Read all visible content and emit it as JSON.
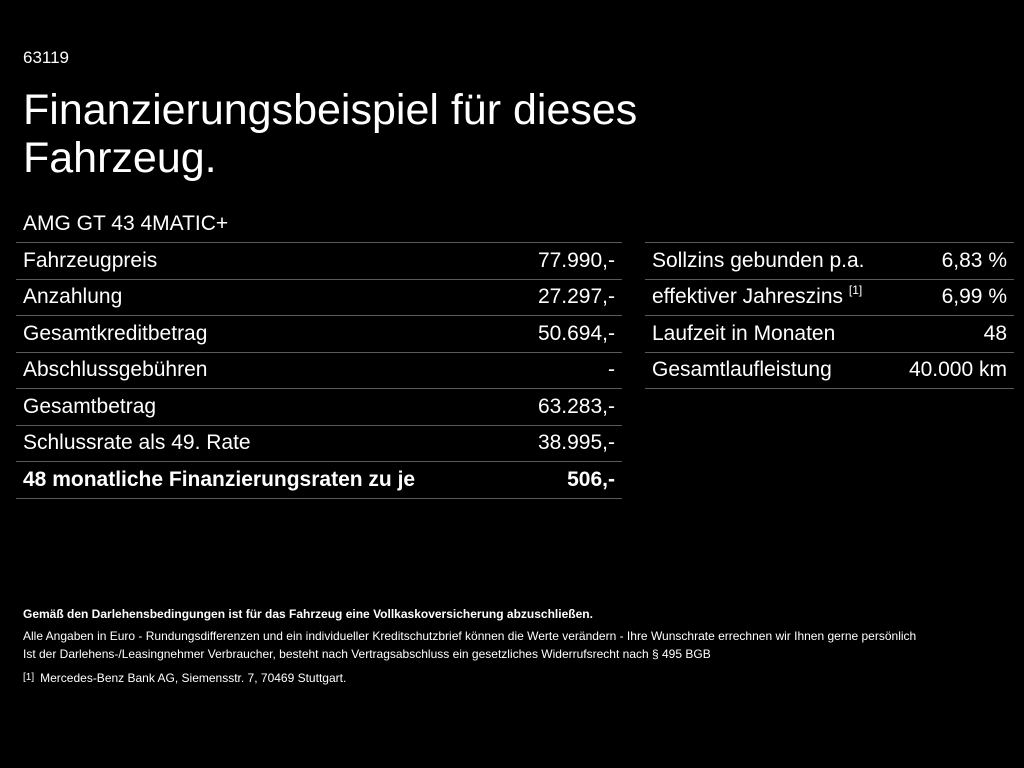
{
  "header": {
    "code": "63119",
    "title": "Finanzierungsbeispiel für dieses Fahrzeug.",
    "model": "AMG GT 43 4MATIC+"
  },
  "financing": {
    "rows": [
      {
        "label": "Fahrzeugpreis",
        "value": "77.990,-"
      },
      {
        "label": "Anzahlung",
        "value": "27.297,-"
      },
      {
        "label": "Gesamtkreditbetrag",
        "value": "50.694,-"
      },
      {
        "label": "Abschlussgebühren",
        "value": "-"
      },
      {
        "label": "Gesamtbetrag",
        "value": "63.283,-"
      },
      {
        "label": "Schlussrate als 49. Rate",
        "value": "38.995,-"
      }
    ],
    "total": {
      "label": "48 monatliche Finanzierungsraten zu je",
      "value": "506,-"
    }
  },
  "terms": {
    "rows": [
      {
        "label": "Sollzins gebunden p.a.",
        "ref": "",
        "value": "6,83 %"
      },
      {
        "label": "effektiver Jahreszins",
        "ref": "[1]",
        "value": "6,99 %"
      },
      {
        "label": "Laufzeit in Monaten",
        "ref": "",
        "value": "48"
      },
      {
        "label": "Gesamtlaufleistung",
        "ref": "",
        "value": "40.000 km"
      }
    ]
  },
  "footnotes": {
    "insurance": "Gemäß den Darlehensbedingungen ist für das Fahrzeug eine Vollkaskoversicherung abzuschließen.",
    "line1": "Alle Angaben in Euro - Rundungsdifferenzen und ein individueller Kreditschutzbrief können die Werte verändern - Ihre Wunschrate errechnen wir Ihnen gerne persönlich",
    "line2": "Ist der Darlehens-/Leasingnehmer Verbraucher, besteht nach Vertragsabschluss ein gesetzliches Widerrufsrecht nach § 495 BGB",
    "source_mark": "[1]",
    "source": "Mercedes-Benz Bank AG, Siemensstr. 7, 70469 Stuttgart."
  }
}
